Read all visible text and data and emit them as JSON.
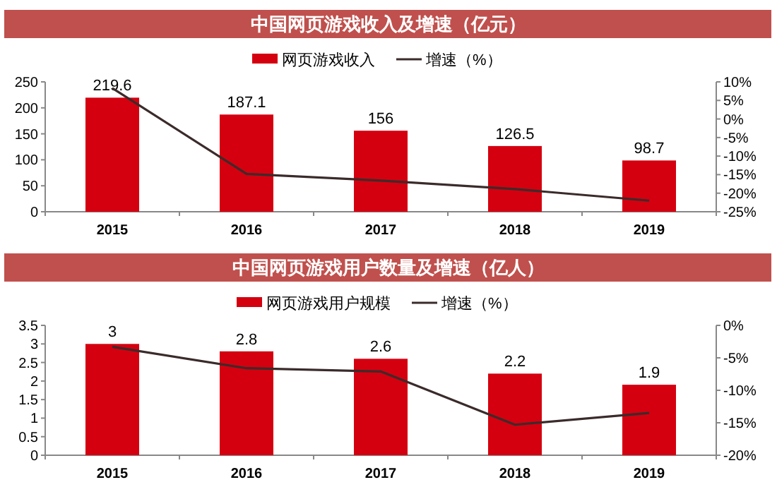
{
  "chart_data": [
    {
      "type": "bar",
      "title": "中国网页游戏收入及增速（亿元）",
      "categories": [
        "2015",
        "2016",
        "2017",
        "2018",
        "2019"
      ],
      "series": [
        {
          "name": "网页游戏收入",
          "color": "#d40010",
          "values": [
            219.6,
            187.1,
            156,
            126.5,
            98.7
          ],
          "value_labels": [
            "219.6",
            "187.1",
            "156",
            "126.5",
            "98.7"
          ]
        },
        {
          "name": "增速（%）",
          "type": "line",
          "axis": "y2",
          "color": "#3b2b2b",
          "values": [
            8.3,
            -14.8,
            -16.6,
            -18.9,
            -22.0
          ]
        }
      ],
      "ylim": [
        0,
        250
      ],
      "yticks": [
        0,
        50,
        100,
        150,
        200,
        250
      ],
      "y2lim": [
        -25,
        10
      ],
      "y2ticks": [
        {
          "value": -25,
          "label": "-25%"
        },
        {
          "value": -20,
          "label": "-20%"
        },
        {
          "value": -15,
          "label": "-15%"
        },
        {
          "value": -10,
          "label": "-10%"
        },
        {
          "value": -5,
          "label": "-5%"
        },
        {
          "value": 0,
          "label": "0%"
        },
        {
          "value": 5,
          "label": "5%"
        },
        {
          "value": 10,
          "label": "10%"
        }
      ],
      "legend": "top",
      "grid": false
    },
    {
      "type": "bar",
      "title": "中国网页游戏用户数量及增速（亿人）",
      "categories": [
        "2015",
        "2016",
        "2017",
        "2018",
        "2019"
      ],
      "series": [
        {
          "name": "网页游戏用户规模",
          "color": "#d40010",
          "values": [
            3,
            2.8,
            2.6,
            2.2,
            1.9
          ],
          "value_labels": [
            "3",
            "2.8",
            "2.6",
            "2.2",
            "1.9"
          ]
        },
        {
          "name": "增速（%）",
          "type": "line",
          "axis": "y2",
          "color": "#3b2b2b",
          "values": [
            -3.3,
            -6.6,
            -7.1,
            -15.3,
            -13.5
          ]
        }
      ],
      "ylim": [
        0,
        3.5
      ],
      "yticks": [
        0,
        0.5,
        1,
        1.5,
        2,
        2.5,
        3,
        3.5
      ],
      "y2lim": [
        -20,
        0
      ],
      "y2ticks": [
        {
          "value": -20,
          "label": "-20%"
        },
        {
          "value": -15,
          "label": "-15%"
        },
        {
          "value": -10,
          "label": "-10%"
        },
        {
          "value": -5,
          "label": "-5%"
        },
        {
          "value": 0,
          "label": "0%"
        }
      ],
      "legend": "top",
      "grid": false
    }
  ]
}
